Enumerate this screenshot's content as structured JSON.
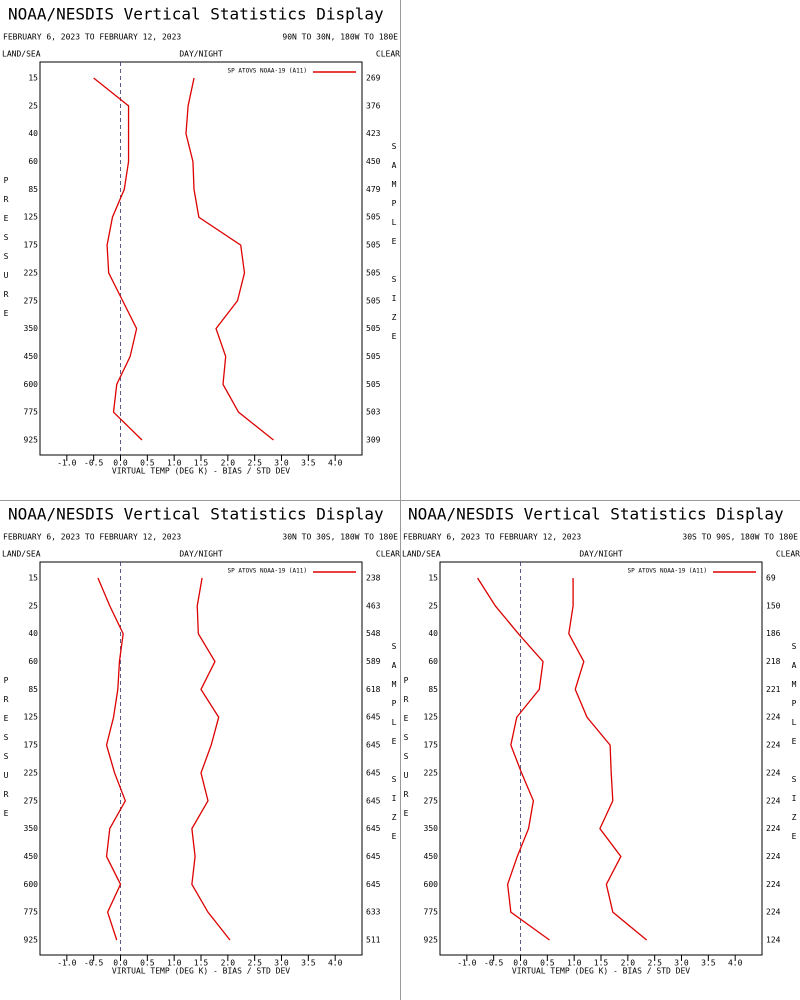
{
  "chart_data": [
    {
      "type": "line",
      "title": "NOAA/NESDIS Vertical Statistics Display",
      "date_range": "FEBRUARY 6, 2023 TO FEBRUARY 12, 2023",
      "region": "90N TO 30N, 180W TO 180E",
      "header_left": "LAND/SEA",
      "header_center": "DAY/NIGHT",
      "header_right": "CLEAR",
      "legend": "SP ATOVS NOAA-19 (A11)",
      "color": "#dd0000",
      "y_label": "PRESSURE",
      "y2_label": "SAMPLE SIZE",
      "x_label": "VIRTUAL TEMP (DEG K) - BIAS / STD DEV",
      "categories": [
        "15",
        "25",
        "40",
        "60",
        "85",
        "125",
        "175",
        "225",
        "275",
        "350",
        "450",
        "600",
        "775",
        "925"
      ],
      "sample_size": [
        "269",
        "376",
        "423",
        "450",
        "479",
        "505",
        "505",
        "505",
        "505",
        "505",
        "505",
        "505",
        "503",
        "309"
      ],
      "series": [
        {
          "values": [
            -0.5,
            0.15,
            0.15,
            0.15,
            0.07,
            -0.15,
            -0.25,
            -0.22,
            0.04,
            0.3,
            0.18,
            -0.07,
            -0.13,
            0.4
          ]
        },
        {
          "values": [
            1.37,
            1.26,
            1.22,
            1.35,
            1.37,
            1.46,
            2.24,
            2.31,
            2.18,
            1.78,
            1.96,
            1.91,
            2.2,
            2.85
          ]
        }
      ],
      "xlim": [
        -1.5,
        4.5
      ],
      "xticks": [
        {
          "value": -1,
          "label": "-1.0"
        },
        {
          "value": -0.5,
          "label": "-0.5"
        },
        {
          "value": 0,
          "label": "0.0"
        },
        {
          "value": 0.5,
          "label": "0.5"
        },
        {
          "value": 1,
          "label": "1.0"
        },
        {
          "value": 1.5,
          "label": "1.5"
        },
        {
          "value": 2,
          "label": "2.0"
        },
        {
          "value": 2.5,
          "label": "2.5"
        },
        {
          "value": 3,
          "label": "3.0"
        },
        {
          "value": 3.5,
          "label": "3.5"
        },
        {
          "value": 4,
          "label": "4.0"
        }
      ]
    },
    {
      "type": "line",
      "title": "NOAA/NESDIS Vertical Statistics Display",
      "date_range": "FEBRUARY 6, 2023 TO FEBRUARY 12, 2023",
      "region": "30N TO 30S, 180W TO 180E",
      "header_left": "LAND/SEA",
      "header_center": "DAY/NIGHT",
      "header_right": "CLEAR",
      "legend": "SP ATOVS NOAA-19 (A11)",
      "color": "#dd0000",
      "y_label": "PRESSURE",
      "y2_label": "SAMPLE SIZE",
      "x_label": "VIRTUAL TEMP (DEG K) - BIAS / STD DEV",
      "categories": [
        "15",
        "25",
        "40",
        "60",
        "85",
        "125",
        "175",
        "225",
        "275",
        "350",
        "450",
        "600",
        "775",
        "925"
      ],
      "sample_size": [
        "238",
        "463",
        "548",
        "589",
        "618",
        "645",
        "645",
        "645",
        "645",
        "645",
        "645",
        "645",
        "633",
        "511"
      ],
      "series": [
        {
          "values": [
            -0.42,
            -0.2,
            0.05,
            -0.02,
            -0.05,
            -0.13,
            -0.26,
            -0.11,
            0.09,
            -0.2,
            -0.26,
            0,
            -0.24,
            -0.07
          ]
        },
        {
          "values": [
            1.52,
            1.43,
            1.45,
            1.76,
            1.5,
            1.83,
            1.69,
            1.5,
            1.63,
            1.33,
            1.39,
            1.33,
            1.63,
            2.04
          ]
        }
      ],
      "xlim": [
        -1.5,
        4.5
      ],
      "xticks": [
        {
          "value": -1,
          "label": "-1.0"
        },
        {
          "value": -0.5,
          "label": "-0.5"
        },
        {
          "value": 0,
          "label": "0.0"
        },
        {
          "value": 0.5,
          "label": "0.5"
        },
        {
          "value": 1,
          "label": "1.0"
        },
        {
          "value": 1.5,
          "label": "1.5"
        },
        {
          "value": 2,
          "label": "2.0"
        },
        {
          "value": 2.5,
          "label": "2.5"
        },
        {
          "value": 3,
          "label": "3.0"
        },
        {
          "value": 3.5,
          "label": "3.5"
        },
        {
          "value": 4,
          "label": "4.0"
        }
      ]
    },
    {
      "type": "line",
      "title": "NOAA/NESDIS Vertical Statistics Display",
      "date_range": "FEBRUARY 6, 2023 TO FEBRUARY 12, 2023",
      "region": "30S TO 90S, 180W TO 180E",
      "header_left": "LAND/SEA",
      "header_center": "DAY/NIGHT",
      "header_right": "CLEAR",
      "legend": "SP ATOVS NOAA-19 (A11)",
      "color": "#dd0000",
      "y_label": "PRESSURE",
      "y2_label": "SAMPLE SIZE",
      "x_label": "VIRTUAL TEMP (DEG K) - BIAS / STD DEV",
      "categories": [
        "15",
        "25",
        "40",
        "60",
        "85",
        "125",
        "175",
        "225",
        "275",
        "350",
        "450",
        "600",
        "775",
        "925"
      ],
      "sample_size": [
        "69",
        "150",
        "186",
        "218",
        "221",
        "224",
        "224",
        "224",
        "224",
        "224",
        "224",
        "224",
        "224",
        "124"
      ],
      "series": [
        {
          "values": [
            -0.8,
            -0.47,
            -0.04,
            0.42,
            0.35,
            -0.07,
            -0.18,
            0.02,
            0.24,
            0.15,
            -0.06,
            -0.24,
            -0.18,
            0.54
          ]
        },
        {
          "values": [
            0.98,
            0.98,
            0.9,
            1.18,
            1.02,
            1.24,
            1.67,
            1.69,
            1.72,
            1.48,
            1.87,
            1.6,
            1.72,
            2.35
          ]
        }
      ],
      "xlim": [
        -1.5,
        4.5
      ],
      "xticks": [
        {
          "value": -1,
          "label": "-1.0"
        },
        {
          "value": -0.5,
          "label": "-0.5"
        },
        {
          "value": 0,
          "label": "0.0"
        },
        {
          "value": 0.5,
          "label": "0.5"
        },
        {
          "value": 1,
          "label": "1.0"
        },
        {
          "value": 1.5,
          "label": "1.5"
        },
        {
          "value": 2,
          "label": "2.0"
        },
        {
          "value": 2.5,
          "label": "2.5"
        },
        {
          "value": 3,
          "label": "3.0"
        },
        {
          "value": 3.5,
          "label": "3.5"
        },
        {
          "value": 4,
          "label": "4.0"
        }
      ]
    }
  ]
}
